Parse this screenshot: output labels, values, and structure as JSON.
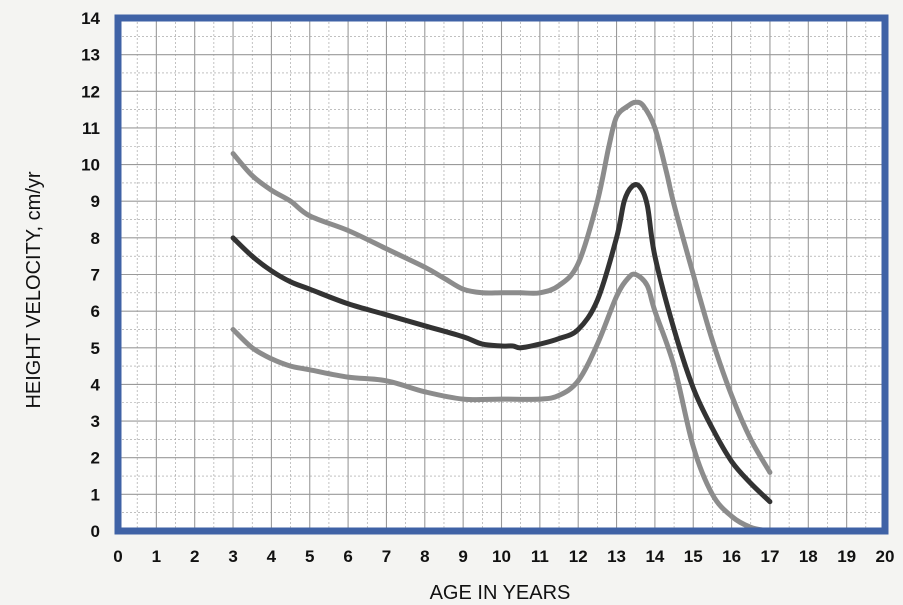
{
  "chart_data": {
    "type": "line",
    "title": "",
    "xlabel": "AGE IN YEARS",
    "ylabel": "HEIGHT VELOCITY, cm/yr",
    "xlim": [
      0,
      20
    ],
    "ylim": [
      0,
      14
    ],
    "x_ticks": [
      0,
      1,
      2,
      3,
      4,
      5,
      6,
      7,
      8,
      9,
      10,
      11,
      12,
      13,
      14,
      15,
      16,
      17,
      18,
      19,
      20
    ],
    "y_ticks": [
      0,
      1,
      2,
      3,
      4,
      5,
      6,
      7,
      8,
      9,
      10,
      11,
      12,
      13,
      14
    ],
    "grid": true,
    "legend": "none",
    "colors": {
      "frame": "#3f62a6",
      "grid": "#9a9a9a",
      "median": "#333333",
      "bounds": "#8c8c8c"
    },
    "series": [
      {
        "x": [
          3,
          3.5,
          4,
          4.5,
          5,
          6,
          7,
          8,
          8.5,
          9,
          9.5,
          10,
          10.5,
          11,
          11.5,
          12,
          12.5,
          12.8,
          13,
          13.3,
          13.5,
          13.7,
          14,
          14.3,
          14.5,
          15,
          15.5,
          16,
          16.5,
          17
        ],
        "y": [
          10.3,
          9.7,
          9.3,
          9.0,
          8.6,
          8.2,
          7.7,
          7.2,
          6.9,
          6.6,
          6.5,
          6.5,
          6.5,
          6.5,
          6.7,
          7.3,
          9.0,
          10.5,
          11.3,
          11.6,
          11.7,
          11.6,
          11.0,
          9.8,
          8.9,
          7.0,
          5.2,
          3.7,
          2.5,
          1.6
        ]
      },
      {
        "x": [
          3,
          3.5,
          4,
          4.5,
          5,
          6,
          7,
          8,
          9,
          9.5,
          10,
          10.3,
          10.5,
          11,
          11.5,
          12,
          12.5,
          13,
          13.2,
          13.4,
          13.6,
          13.8,
          14,
          14.5,
          15,
          15.5,
          16,
          16.5,
          17
        ],
        "y": [
          8.0,
          7.5,
          7.1,
          6.8,
          6.6,
          6.2,
          5.9,
          5.6,
          5.3,
          5.1,
          5.05,
          5.05,
          5.0,
          5.1,
          5.25,
          5.5,
          6.3,
          8.0,
          9.0,
          9.4,
          9.4,
          8.9,
          7.5,
          5.5,
          3.9,
          2.8,
          1.9,
          1.3,
          0.8
        ]
      },
      {
        "x": [
          3,
          3.5,
          4,
          4.5,
          5,
          6,
          7,
          8,
          9,
          10,
          11,
          11.5,
          12,
          12.5,
          13,
          13.3,
          13.5,
          13.8,
          14,
          14.5,
          15,
          15.5,
          16,
          16.5,
          17
        ],
        "y": [
          5.5,
          5.0,
          4.7,
          4.5,
          4.4,
          4.2,
          4.1,
          3.8,
          3.6,
          3.6,
          3.6,
          3.7,
          4.1,
          5.1,
          6.4,
          6.9,
          7.0,
          6.7,
          6.0,
          4.5,
          2.3,
          1.0,
          0.4,
          0.1,
          0.0
        ]
      }
    ]
  }
}
